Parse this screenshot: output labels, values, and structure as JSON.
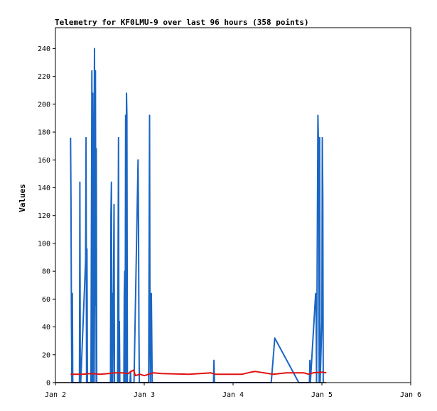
{
  "chart_data": {
    "type": "line",
    "title": "Telemetry for KF0LMU-9 over last 96 hours (358 points)",
    "ylabel": "Values",
    "xlabel": "",
    "xlim": [
      2.0,
      6.0
    ],
    "ylim": [
      0,
      255
    ],
    "x_ticks": [
      {
        "value": 2,
        "label": "Jan 2"
      },
      {
        "value": 3,
        "label": "Jan 3"
      },
      {
        "value": 4,
        "label": "Jan 4"
      },
      {
        "value": 5,
        "label": "Jan 5"
      },
      {
        "value": 6,
        "label": "Jan 6"
      }
    ],
    "y_ticks": [
      0,
      20,
      40,
      60,
      80,
      100,
      120,
      140,
      160,
      180,
      200,
      220,
      240
    ],
    "grid": false,
    "colors": {
      "blue": "#1a66c4",
      "red": "#e01010",
      "black": "#000000"
    },
    "series": [
      {
        "color": "blue",
        "points": [
          [
            2.17,
            176
          ],
          [
            2.175,
            132
          ],
          [
            2.18,
            48
          ],
          [
            2.185,
            0
          ],
          [
            2.19,
            64
          ],
          [
            2.195,
            0
          ],
          [
            2.27,
            0
          ],
          [
            2.275,
            144
          ],
          [
            2.28,
            0
          ],
          [
            2.28,
            16
          ],
          [
            2.285,
            0
          ],
          [
            2.34,
            88
          ],
          [
            2.345,
            176
          ],
          [
            2.35,
            0
          ],
          [
            2.355,
            96
          ],
          [
            2.36,
            0
          ],
          [
            2.4,
            0
          ],
          [
            2.41,
            224
          ],
          [
            2.415,
            0
          ],
          [
            2.42,
            208
          ],
          [
            2.425,
            0
          ],
          [
            2.43,
            104
          ],
          [
            2.44,
            240
          ],
          [
            2.445,
            0
          ],
          [
            2.45,
            224
          ],
          [
            2.455,
            56
          ],
          [
            2.46,
            168
          ],
          [
            2.465,
            0
          ],
          [
            2.62,
            0
          ],
          [
            2.625,
            120
          ],
          [
            2.63,
            144
          ],
          [
            2.635,
            0
          ],
          [
            2.64,
            64
          ],
          [
            2.645,
            0
          ],
          [
            2.66,
            128
          ],
          [
            2.665,
            0
          ],
          [
            2.7,
            0
          ],
          [
            2.71,
            176
          ],
          [
            2.715,
            0
          ],
          [
            2.72,
            44
          ],
          [
            2.725,
            0
          ],
          [
            2.77,
            0
          ],
          [
            2.775,
            64
          ],
          [
            2.78,
            80
          ],
          [
            2.785,
            0
          ],
          [
            2.79,
            192
          ],
          [
            2.795,
            0
          ],
          [
            2.8,
            208
          ],
          [
            2.805,
            192
          ],
          [
            2.81,
            0
          ],
          [
            2.84,
            0
          ],
          [
            2.845,
            8
          ],
          [
            2.85,
            0
          ],
          [
            2.88,
            0
          ],
          [
            2.885,
            0
          ],
          [
            2.93,
            160
          ],
          [
            2.935,
            120
          ],
          [
            2.94,
            40
          ],
          [
            2.945,
            0
          ],
          [
            3.05,
            0
          ],
          [
            3.06,
            192
          ],
          [
            3.065,
            32
          ],
          [
            3.07,
            0
          ],
          [
            3.08,
            64
          ],
          [
            3.085,
            32
          ],
          [
            3.09,
            0
          ],
          [
            3.78,
            0
          ],
          [
            3.785,
            16
          ],
          [
            3.79,
            0
          ],
          [
            4.43,
            0
          ],
          [
            4.47,
            32
          ],
          [
            4.74,
            0
          ],
          [
            4.86,
            0
          ],
          [
            4.865,
            16
          ],
          [
            4.87,
            0
          ],
          [
            4.93,
            64
          ],
          [
            4.935,
            52
          ],
          [
            4.94,
            0
          ],
          [
            4.955,
            192
          ],
          [
            4.96,
            176
          ],
          [
            4.965,
            136
          ],
          [
            4.97,
            0
          ],
          [
            4.975,
            176
          ],
          [
            4.98,
            0
          ],
          [
            5.0,
            44
          ],
          [
            5.005,
            176
          ],
          [
            5.01,
            132
          ],
          [
            5.015,
            0
          ]
        ]
      },
      {
        "color": "red",
        "points": [
          [
            2.17,
            6
          ],
          [
            2.3,
            6
          ],
          [
            2.4,
            6.5
          ],
          [
            2.5,
            6
          ],
          [
            2.6,
            6.5
          ],
          [
            2.65,
            7
          ],
          [
            2.7,
            7
          ],
          [
            2.75,
            7
          ],
          [
            2.82,
            6.5
          ],
          [
            2.85,
            8
          ],
          [
            2.88,
            9
          ],
          [
            2.9,
            5
          ],
          [
            2.95,
            6
          ],
          [
            3.0,
            5
          ],
          [
            3.1,
            7
          ],
          [
            3.2,
            6.5
          ],
          [
            3.5,
            6
          ],
          [
            3.75,
            7
          ],
          [
            3.8,
            6
          ],
          [
            4.1,
            6
          ],
          [
            4.2,
            7.5
          ],
          [
            4.25,
            8
          ],
          [
            4.3,
            7.5
          ],
          [
            4.45,
            6
          ],
          [
            4.6,
            7
          ],
          [
            4.8,
            7
          ],
          [
            4.85,
            6
          ],
          [
            4.9,
            7
          ],
          [
            5.0,
            7.5
          ],
          [
            5.05,
            7
          ]
        ]
      },
      {
        "color": "black",
        "points": [
          [
            2.0,
            0
          ],
          [
            5.05,
            0
          ]
        ]
      }
    ]
  }
}
